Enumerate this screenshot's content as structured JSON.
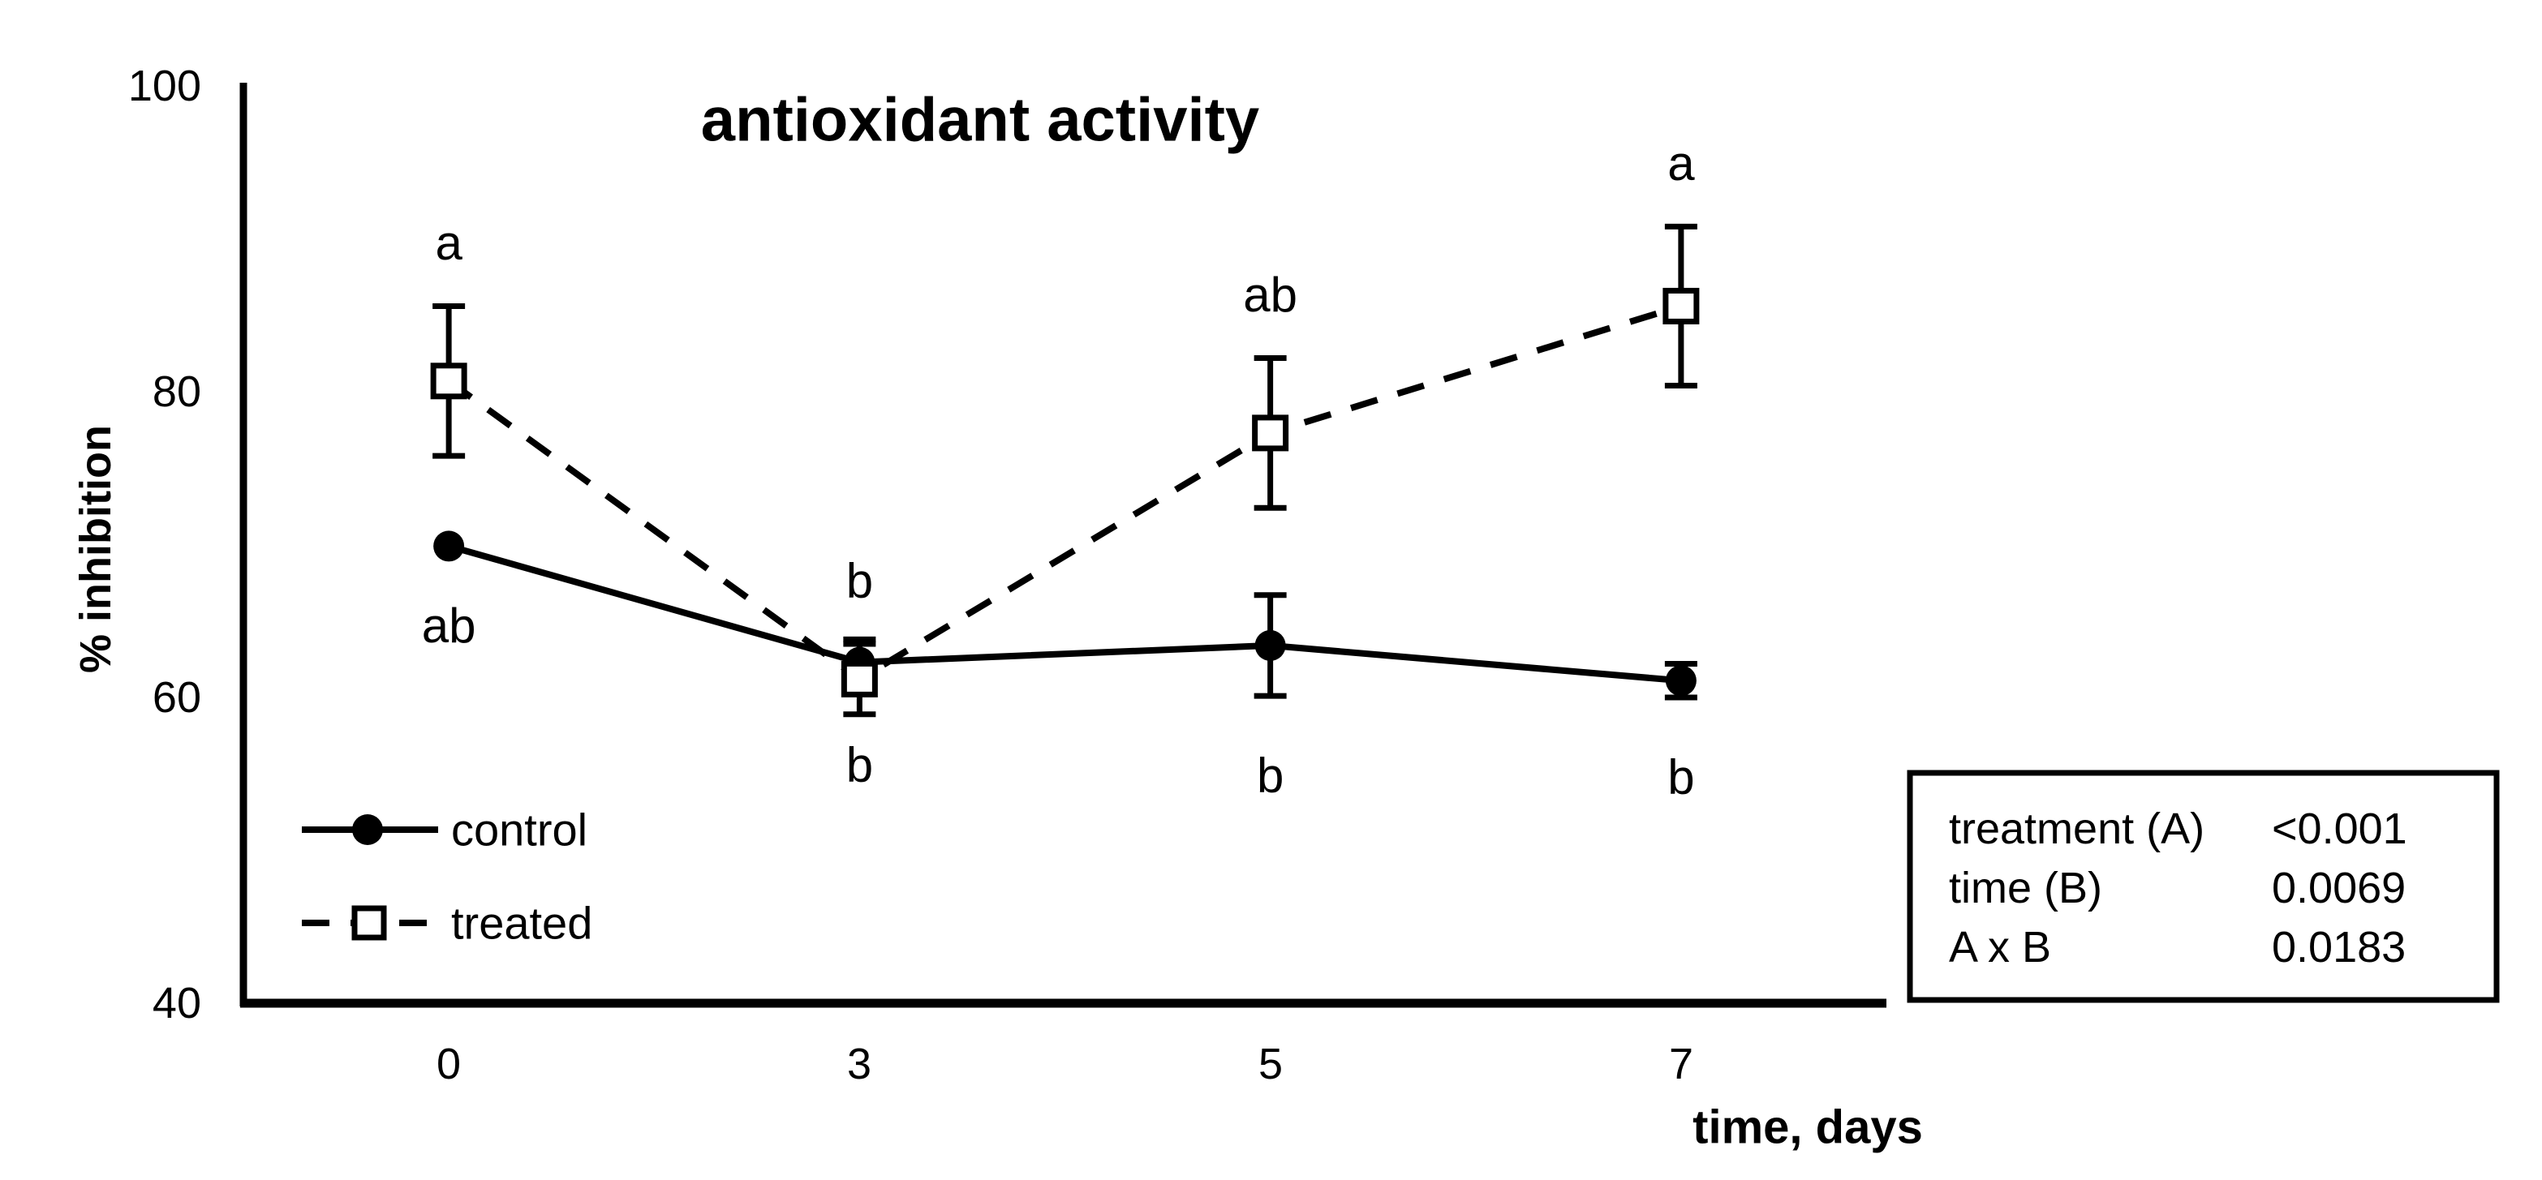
{
  "chart_data": {
    "type": "line",
    "title": "antioxidant activity",
    "xlabel": "time, days",
    "ylabel": "% inhibition",
    "x_categories": [
      0,
      3,
      5,
      7
    ],
    "x_tick_labels": [
      "0",
      "3",
      "5",
      "7"
    ],
    "y_tick_labels": [
      "100",
      "80",
      "60",
      "40"
    ],
    "y_ticks": [
      100,
      80,
      60,
      40
    ],
    "ylim": [
      40,
      100
    ],
    "grid": false,
    "legend_position": "inside lower-left",
    "series": [
      {
        "name": "control",
        "line_style": "solid",
        "marker": "filled-circle",
        "values": [
          69.9,
          62.3,
          63.4,
          61.1
        ],
        "error_bars": [
          0,
          1.5,
          3.3,
          1.1
        ],
        "sig_letters_below": [
          "ab",
          "b",
          "b",
          "b"
        ]
      },
      {
        "name": "treated",
        "line_style": "dashed",
        "marker": "open-square",
        "values": [
          80.7,
          61.2,
          77.3,
          85.6
        ],
        "error_bars": [
          4.9,
          2.3,
          4.9,
          5.2
        ],
        "sig_letters_above": [
          "a",
          "b",
          "ab",
          "a"
        ]
      }
    ],
    "stats_box": {
      "rows": [
        {
          "label": "treatment (A)",
          "value": "<0.001"
        },
        {
          "label": "time (B)",
          "value": "0.0069"
        },
        {
          "label": "A x B",
          "value": "0.0183"
        }
      ]
    },
    "colors": {
      "foreground": "#000000",
      "background": "#ffffff"
    }
  }
}
